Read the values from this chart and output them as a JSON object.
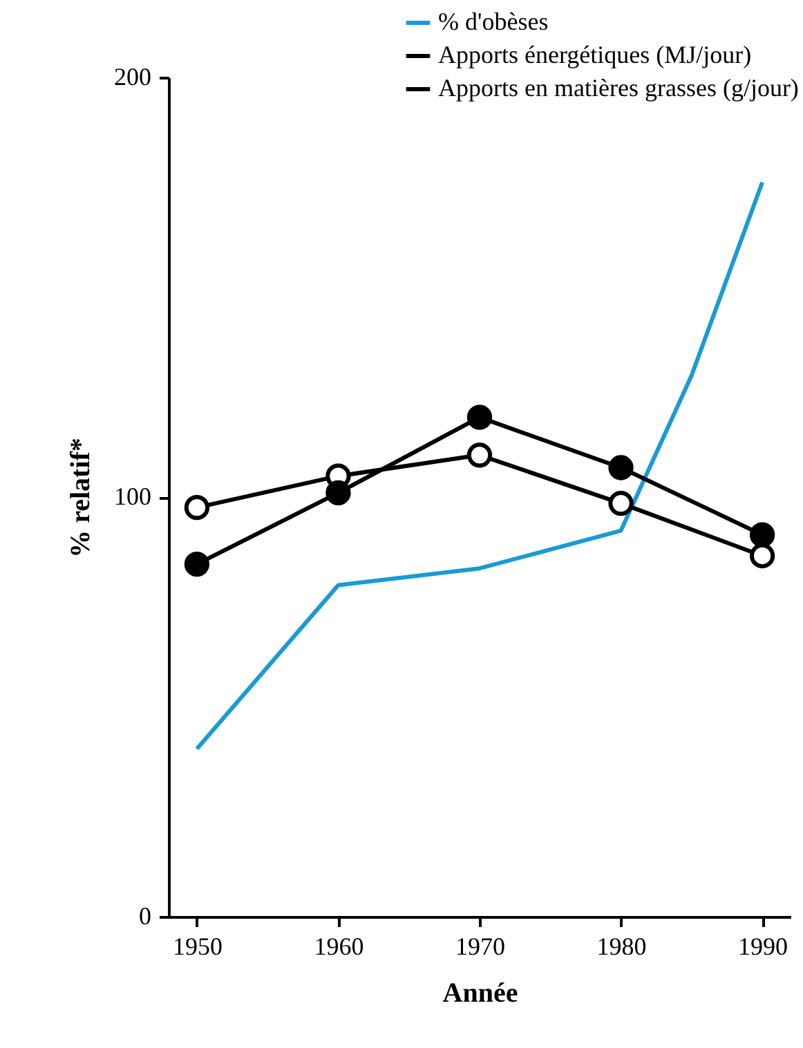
{
  "chart_data": {
    "type": "line",
    "xlabel": "Année",
    "ylabel": "% relatif*",
    "xlim": [
      1948,
      1992
    ],
    "xticks": [
      1950,
      1960,
      1970,
      1980,
      1990
    ],
    "ylim": [
      0,
      200
    ],
    "yticks": [
      0,
      100,
      200
    ],
    "grid": false,
    "legend": "top right",
    "line_style": "solid",
    "series": [
      {
        "name": "% d'obèses",
        "color": "#1a9ad6",
        "marker": "none",
        "x": [
          1950,
          1960,
          1970,
          1980,
          1985,
          1990
        ],
        "values": [
          40,
          79,
          83,
          92,
          129,
          175
        ]
      },
      {
        "name": "Apports énergétiques (MJ/jour)",
        "color": "#000000",
        "marker": "circle-open",
        "x": [
          1950,
          1960,
          1970,
          1980,
          1990
        ],
        "values": [
          97.5,
          105,
          110,
          98.5,
          86
        ]
      },
      {
        "name": "Apports en matières grasses (g/jour)",
        "color": "#000000",
        "marker": "circle",
        "x": [
          1950,
          1960,
          1970,
          1980,
          1990
        ],
        "values": [
          84,
          101,
          119,
          107,
          91
        ]
      }
    ]
  }
}
